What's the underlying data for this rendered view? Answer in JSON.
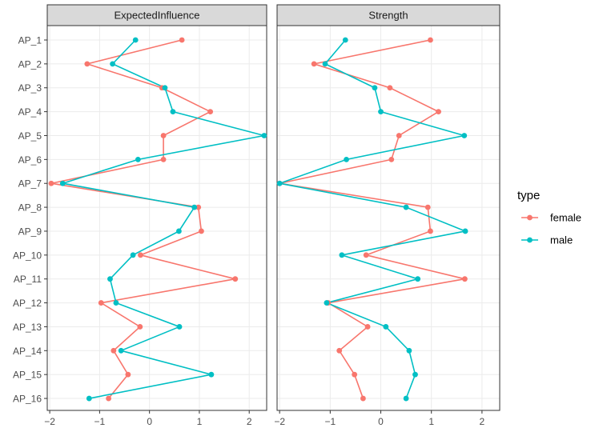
{
  "chart_data": {
    "type": "line",
    "facets": [
      "ExpectedInfluence",
      "Strength"
    ],
    "categories": [
      "AP_1",
      "AP_2",
      "AP_3",
      "AP_4",
      "AP_5",
      "AP_6",
      "AP_7",
      "AP_8",
      "AP_9",
      "AP_10",
      "AP_11",
      "AP_12",
      "AP_13",
      "AP_14",
      "AP_15",
      "AP_16"
    ],
    "xlim": [
      -2.05,
      2.35
    ],
    "xticks": [
      -2,
      -1,
      0,
      1,
      2
    ],
    "xtick_labels": [
      "−2",
      "−1",
      "0",
      "1",
      "2"
    ],
    "series": [
      {
        "name": "female",
        "color": "#F8766D",
        "ExpectedInfluence": [
          0.65,
          -1.25,
          0.25,
          1.22,
          0.28,
          0.28,
          -1.97,
          0.98,
          1.04,
          -0.18,
          1.72,
          -0.97,
          -0.19,
          -0.72,
          -0.43,
          -0.82
        ],
        "Strength": [
          0.98,
          -1.32,
          0.18,
          1.14,
          0.36,
          0.21,
          -2.0,
          0.93,
          0.98,
          -0.29,
          1.66,
          -1.04,
          -0.26,
          -0.82,
          -0.52,
          -0.35
        ]
      },
      {
        "name": "male",
        "color": "#00BFC4",
        "ExpectedInfluence": [
          -0.28,
          -0.74,
          0.31,
          0.47,
          2.3,
          -0.23,
          -1.74,
          0.9,
          0.59,
          -0.33,
          -0.79,
          -0.67,
          0.6,
          -0.57,
          1.24,
          -1.21
        ],
        "Strength": [
          -0.7,
          -1.1,
          -0.12,
          0.0,
          1.65,
          -0.68,
          -2.0,
          0.5,
          1.67,
          -0.77,
          0.73,
          -1.07,
          0.1,
          0.56,
          0.68,
          0.5
        ]
      }
    ],
    "legend": {
      "title": "type",
      "position": "right"
    }
  }
}
